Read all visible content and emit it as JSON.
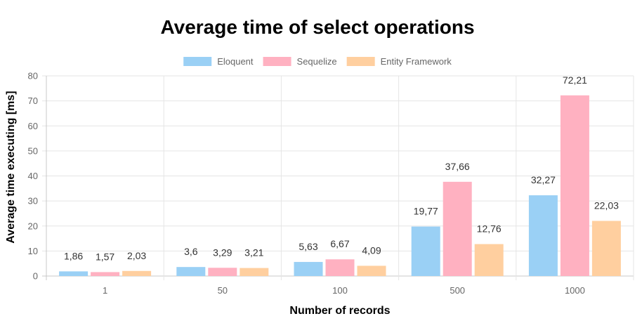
{
  "chart_data": {
    "type": "bar",
    "title": "Average time of select operations",
    "xlabel": "Number of records",
    "ylabel": "Average time executing [ms]",
    "categories": [
      "1",
      "50",
      "100",
      "500",
      "1000"
    ],
    "series": [
      {
        "name": "Eloquent",
        "values": [
          1.86,
          3.6,
          5.63,
          19.77,
          32.27
        ],
        "labels": [
          "1,86",
          "3,6",
          "5,63",
          "19,77",
          "32,27"
        ],
        "fill": "#9ad0f5",
        "stroke": "#36a2eb"
      },
      {
        "name": "Sequelize",
        "values": [
          1.57,
          3.29,
          6.67,
          37.66,
          72.21
        ],
        "labels": [
          "1,57",
          "3,29",
          "6,67",
          "37,66",
          "72,21"
        ],
        "fill": "#ffb1c1",
        "stroke": "#ff6384"
      },
      {
        "name": "Entity Framework",
        "values": [
          2.03,
          3.21,
          4.09,
          12.76,
          22.03
        ],
        "labels": [
          "2,03",
          "3,21",
          "4,09",
          "12,76",
          "22,03"
        ],
        "fill": "#ffcf9f",
        "stroke": "#ff9f40"
      }
    ],
    "ylim": [
      0,
      80
    ],
    "yticks": [
      0,
      10,
      20,
      30,
      40,
      50,
      60,
      70,
      80
    ],
    "grid": true,
    "legend_position": "top-center"
  }
}
